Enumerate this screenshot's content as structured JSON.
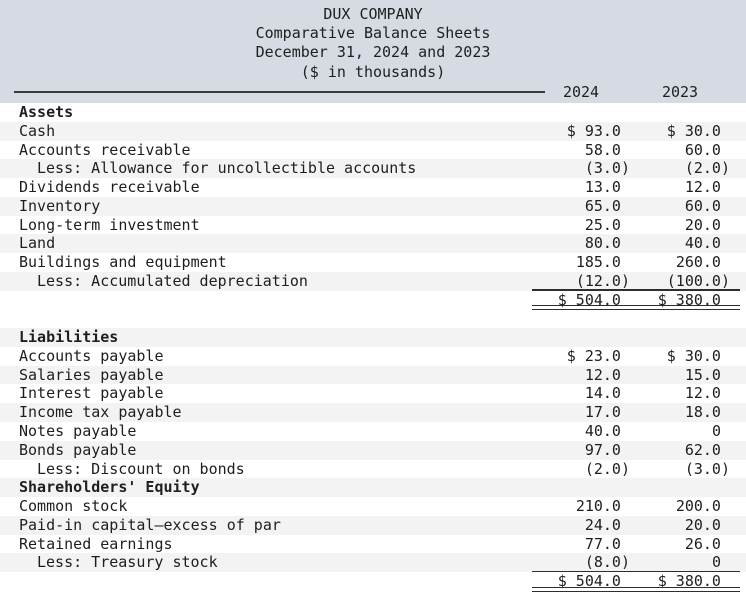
{
  "header": {
    "company": "DUX COMPANY",
    "report_title": "Comparative Balance Sheets",
    "period": "December 31, 2024 and 2023",
    "units_note": "($ in thousands)",
    "columns": [
      "2024",
      "2023"
    ]
  },
  "colors": {
    "header_bg": "#d6dae3",
    "stripe_bg": "#f3f3f3",
    "text": "#1e1e1e",
    "rule": "#2e2e2e"
  },
  "rows": [
    {
      "type": "section",
      "label": "Assets",
      "v2024": "",
      "v2023": ""
    },
    {
      "type": "item",
      "label": "Cash",
      "v2024": "$ 93.0",
      "v2023": "$ 30.0"
    },
    {
      "type": "item",
      "label": "Accounts receivable",
      "v2024": "58.0",
      "v2023": "60.0"
    },
    {
      "type": "item",
      "indent": true,
      "label": "Less: Allowance for uncollectible accounts",
      "v2024": "(3.0)",
      "v2023": "(2.0)"
    },
    {
      "type": "item",
      "label": "Dividends receivable",
      "v2024": "13.0",
      "v2023": "12.0"
    },
    {
      "type": "item",
      "label": "Inventory",
      "v2024": "65.0",
      "v2023": "60.0"
    },
    {
      "type": "item",
      "label": "Long-term investment",
      "v2024": "25.0",
      "v2023": "20.0"
    },
    {
      "type": "item",
      "label": "Land",
      "v2024": "80.0",
      "v2023": "40.0"
    },
    {
      "type": "item",
      "label": "Buildings and equipment",
      "v2024": "185.0",
      "v2023": "260.0"
    },
    {
      "type": "item",
      "indent": true,
      "label": "Less: Accumulated depreciation",
      "v2024": "(12.0)",
      "v2023": "(100.0)",
      "rule_below": true
    },
    {
      "type": "total",
      "label": "",
      "v2024": "$ 504.0",
      "v2023": "$ 380.0",
      "double_below": true
    },
    {
      "type": "spacer",
      "label": "",
      "v2024": "",
      "v2023": ""
    },
    {
      "type": "section",
      "label": "Liabilities",
      "v2024": "",
      "v2023": ""
    },
    {
      "type": "item",
      "label": "Accounts payable",
      "v2024": "$ 23.0",
      "v2023": "$ 30.0"
    },
    {
      "type": "item",
      "label": "Salaries payable",
      "v2024": "12.0",
      "v2023": "15.0"
    },
    {
      "type": "item",
      "label": "Interest payable",
      "v2024": "14.0",
      "v2023": "12.0"
    },
    {
      "type": "item",
      "label": "Income tax payable",
      "v2024": "17.0",
      "v2023": "18.0"
    },
    {
      "type": "item",
      "label": "Notes payable",
      "v2024": "40.0",
      "v2023": "0"
    },
    {
      "type": "item",
      "label": "Bonds payable",
      "v2024": "97.0",
      "v2023": "62.0"
    },
    {
      "type": "item",
      "indent": true,
      "label": "Less: Discount on bonds",
      "v2024": "(2.0)",
      "v2023": "(3.0)"
    },
    {
      "type": "section",
      "label": "Shareholders' Equity",
      "v2024": "",
      "v2023": ""
    },
    {
      "type": "item",
      "label": "Common stock",
      "v2024": "210.0",
      "v2023": "200.0"
    },
    {
      "type": "item",
      "label": "Paid-in capital—excess of par",
      "v2024": "24.0",
      "v2023": "20.0"
    },
    {
      "type": "item",
      "label": "Retained earnings",
      "v2024": "77.0",
      "v2023": "26.0"
    },
    {
      "type": "item",
      "indent": true,
      "label": "Less: Treasury stock",
      "v2024": "(8.0)",
      "v2023": "0",
      "rule_below": true
    },
    {
      "type": "total",
      "label": "",
      "v2024": "$ 504.0",
      "v2023": "$ 380.0",
      "double_below": true
    }
  ]
}
